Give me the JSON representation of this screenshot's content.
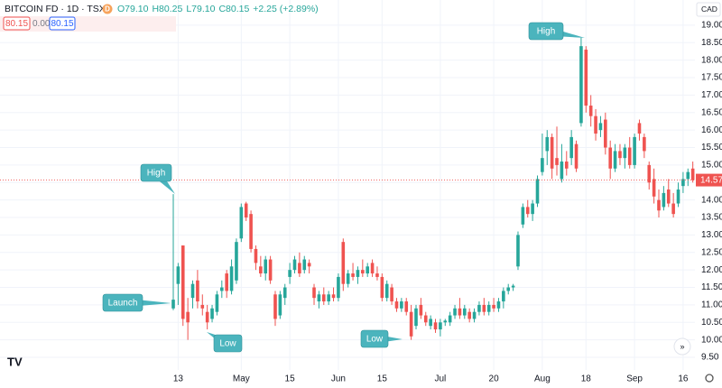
{
  "chart_data": {
    "type": "candlestick",
    "title": "BITCOIN FD · 1D · TSX",
    "badge": "D",
    "ohlc_text": [
      "O79.10",
      "H80.25",
      "L79.10",
      "C80.15",
      "+2.25 (+2.89%)"
    ],
    "price_boxes": [
      "80.15",
      "0.00",
      "80.15"
    ],
    "currency": "CAD",
    "up_color": "#26a69a",
    "down_color": "#ef5350",
    "annotation_color": "#4bb4bd",
    "annotations": [
      "High",
      "Launch",
      "Low",
      "Low",
      "High"
    ],
    "last_price": {
      "value": 14.57,
      "label": "14.57"
    },
    "grid": true,
    "ylim": [
      9.14,
      19.72
    ],
    "yticks": [
      {
        "value": 9.5,
        "label": "9.50"
      },
      {
        "value": 10,
        "label": "10.00"
      },
      {
        "value": 10.5,
        "label": "10.50"
      },
      {
        "value": 11,
        "label": "11.00"
      },
      {
        "value": 11.5,
        "label": "11.50"
      },
      {
        "value": 12,
        "label": "12.00"
      },
      {
        "value": 12.5,
        "label": "12.50"
      },
      {
        "value": 13,
        "label": "13.00"
      },
      {
        "value": 13.5,
        "label": "13.50"
      },
      {
        "value": 14,
        "label": "14.00"
      },
      {
        "value": 14.5,
        "label": "14.50"
      },
      {
        "value": 15,
        "label": "15.00"
      },
      {
        "value": 15.5,
        "label": "15.50"
      },
      {
        "value": 16,
        "label": "16.00"
      },
      {
        "value": 16.5,
        "label": "16.50"
      },
      {
        "value": 17,
        "label": "17.00"
      },
      {
        "value": 17.5,
        "label": "17.50"
      },
      {
        "value": 18,
        "label": "18.00"
      },
      {
        "value": 18.5,
        "label": "18.50"
      },
      {
        "value": 19,
        "label": "19.00"
      }
    ],
    "categories": [
      null,
      "13",
      null,
      null,
      null,
      null,
      null,
      null,
      null,
      null,
      null,
      null,
      null,
      null,
      "May",
      null,
      null,
      null,
      null,
      null,
      null,
      null,
      null,
      null,
      "15",
      null,
      null,
      null,
      null,
      null,
      null,
      null,
      null,
      null,
      "Jun",
      null,
      null,
      null,
      null,
      null,
      null,
      null,
      null,
      "15",
      null,
      null,
      null,
      null,
      null,
      null,
      null,
      null,
      null,
      null,
      null,
      "Jul",
      null,
      null,
      null,
      null,
      null,
      null,
      null,
      null,
      null,
      null,
      "20",
      null,
      null,
      null,
      null,
      null,
      null,
      null,
      null,
      null,
      "Aug",
      null,
      null,
      null,
      null,
      null,
      null,
      null,
      null,
      "18",
      null,
      null,
      null,
      null,
      null,
      null,
      null,
      null,
      null,
      "Sep",
      null,
      null,
      null,
      null,
      null,
      null,
      null,
      null,
      null,
      "16",
      null,
      null
    ],
    "open": [
      10.9,
      11.6,
      12.7,
      10.8,
      11.2,
      11.7,
      11.0,
      10.8,
      10.6,
      10.8,
      11.4,
      11.9,
      11.4,
      11.7,
      12.9,
      13.9,
      13.6,
      12.6,
      12.1,
      11.9,
      12.3,
      11.3,
      10.7,
      11.2,
      11.8,
      12.0,
      12.2,
      12.0,
      12.2,
      11.5,
      11.1,
      11.3,
      11.1,
      11.3,
      11.2,
      12.8,
      11.6,
      11.9,
      11.8,
      12.0,
      11.9,
      12.2,
      11.9,
      11.8,
      11.2,
      11.5,
      11.1,
      10.9,
      11.1,
      10.8,
      10.4,
      11.0,
      10.7,
      10.4,
      10.5,
      10.3,
      10.5,
      10.5,
      10.7,
      10.9,
      10.7,
      10.8,
      10.6,
      10.8,
      11.0,
      10.8,
      11.0,
      10.9,
      11.1,
      11.4,
      11.5,
      12.1,
      13.3,
      13.8,
      13.6,
      13.9,
      14.8,
      15.4,
      15.8,
      15.2,
      14.6,
      15.1,
      15.2,
      15.6,
      16.2,
      18.3,
      16.7,
      16.4,
      16.0,
      16.3,
      15.5,
      14.9,
      15.4,
      15.2,
      15.5,
      15.0,
      16.2,
      15.8,
      15.0,
      14.6,
      14.0,
      13.8,
      14.3,
      13.9,
      13.9,
      14.4,
      14.6,
      14.9
    ],
    "high": [
      14.17,
      12.2,
      12.7,
      11.2,
      11.7,
      12.0,
      11.3,
      11.0,
      11.0,
      11.4,
      11.7,
      12.0,
      12.3,
      12.9,
      13.9,
      13.95,
      13.7,
      12.7,
      12.4,
      12.4,
      12.4,
      11.4,
      11.4,
      11.6,
      12.2,
      12.4,
      12.5,
      12.4,
      12.3,
      11.6,
      11.4,
      11.5,
      11.4,
      11.5,
      11.9,
      12.9,
      12.0,
      12.2,
      12.1,
      12.3,
      12.2,
      12.3,
      12.1,
      11.9,
      11.7,
      11.6,
      11.2,
      11.2,
      11.2,
      11.0,
      11.0,
      11.2,
      10.8,
      10.7,
      10.6,
      10.6,
      10.6,
      10.8,
      11.0,
      11.2,
      11.0,
      10.9,
      10.9,
      11.1,
      11.2,
      11.1,
      11.2,
      11.2,
      11.5,
      11.6,
      11.6,
      13.1,
      13.9,
      14.0,
      14.0,
      14.7,
      15.9,
      16.0,
      15.9,
      16.1,
      15.6,
      15.4,
      16.0,
      15.7,
      18.64,
      18.4,
      17.0,
      16.6,
      16.4,
      16.5,
      15.7,
      15.6,
      15.6,
      15.6,
      15.8,
      15.9,
      16.3,
      15.9,
      15.1,
      14.9,
      14.3,
      14.4,
      14.6,
      14.2,
      14.5,
      14.8,
      14.9,
      15.1
    ],
    "low": [
      10.85,
      11.0,
      10.4,
      10.0,
      10.9,
      10.9,
      10.7,
      10.3,
      10.5,
      10.7,
      11.2,
      11.2,
      11.3,
      11.6,
      12.8,
      13.4,
      12.5,
      12.0,
      11.8,
      11.7,
      11.6,
      10.4,
      10.6,
      11.0,
      11.6,
      11.9,
      11.8,
      11.9,
      11.9,
      11.0,
      10.9,
      11.0,
      11.0,
      11.1,
      11.1,
      11.4,
      11.5,
      11.7,
      11.6,
      11.8,
      11.8,
      11.8,
      11.7,
      11.1,
      11.1,
      11.0,
      10.8,
      10.8,
      10.7,
      10.0,
      10.3,
      10.6,
      10.4,
      10.3,
      10.2,
      10.1,
      10.4,
      10.4,
      10.6,
      10.6,
      10.6,
      10.5,
      10.5,
      10.7,
      10.7,
      10.7,
      10.8,
      10.8,
      10.9,
      11.3,
      11.4,
      12.0,
      13.2,
      13.5,
      13.4,
      13.8,
      14.7,
      15.0,
      14.6,
      14.7,
      14.5,
      14.7,
      15.0,
      14.8,
      16.1,
      16.5,
      16.1,
      15.7,
      15.8,
      15.3,
      14.6,
      14.8,
      15.0,
      14.9,
      14.9,
      14.9,
      15.7,
      15.2,
      14.3,
      13.9,
      13.5,
      13.7,
      13.8,
      13.5,
      13.8,
      14.2,
      14.4,
      14.5
    ],
    "close": [
      11.15,
      12.1,
      10.6,
      10.5,
      11.6,
      11.1,
      10.9,
      10.5,
      10.9,
      11.3,
      11.5,
      11.4,
      12.1,
      12.8,
      13.8,
      13.5,
      12.6,
      12.2,
      11.9,
      12.3,
      11.7,
      10.6,
      11.3,
      11.5,
      12.0,
      12.3,
      11.9,
      12.3,
      12.1,
      11.2,
      11.3,
      11.1,
      11.3,
      11.2,
      11.8,
      11.6,
      11.9,
      11.8,
      12.0,
      11.9,
      12.1,
      11.9,
      11.8,
      11.2,
      11.6,
      11.1,
      10.9,
      11.1,
      10.8,
      10.1,
      10.9,
      10.7,
      10.5,
      10.6,
      10.3,
      10.5,
      10.55,
      10.7,
      10.9,
      10.7,
      10.9,
      10.6,
      10.8,
      11.0,
      10.8,
      11.0,
      10.9,
      11.1,
      11.4,
      11.5,
      11.55,
      13.0,
      13.8,
      13.6,
      13.9,
      14.6,
      15.2,
      15.8,
      14.9,
      15.0,
      15.1,
      14.9,
      15.8,
      14.9,
      18.4,
      16.7,
      16.4,
      15.9,
      16.2,
      15.5,
      14.9,
      15.4,
      15.2,
      15.5,
      15.0,
      15.8,
      15.9,
      15.4,
      14.5,
      14.1,
      13.7,
      14.2,
      13.9,
      13.6,
      14.3,
      14.6,
      14.8,
      14.57
    ]
  }
}
